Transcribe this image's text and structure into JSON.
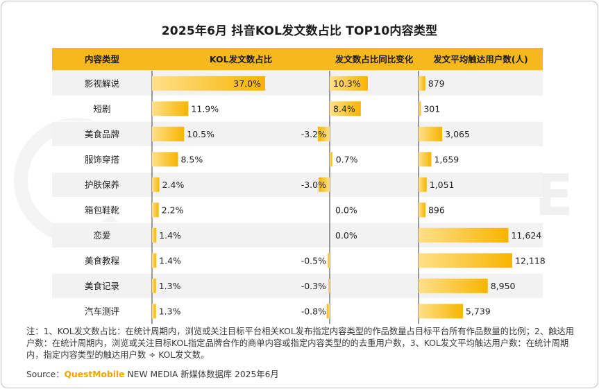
{
  "title": "2025年6月 抖音KOL发文数占比 TOP10内容类型",
  "colors": {
    "header_bg": "#f6b81a",
    "bar_gradient_start": "#ffe08a",
    "bar_gradient_end": "#f7b500",
    "row_alt_bg": "#f2f2f2",
    "brand": "#f3a300"
  },
  "chart_data": {
    "type": "table",
    "columns": [
      "内容类型",
      "KOL发文数占比",
      "发文数占比同比变化",
      "发文平均触达用户数(人)"
    ],
    "rows": [
      {
        "category": "影视解说",
        "share": 37.0,
        "share_label": "37.0%",
        "change": 10.3,
        "change_label": "10.3%",
        "reach": 879,
        "reach_label": "879"
      },
      {
        "category": "短剧",
        "share": 11.9,
        "share_label": "11.9%",
        "change": 8.4,
        "change_label": "8.4%",
        "reach": 301,
        "reach_label": "301"
      },
      {
        "category": "美食品牌",
        "share": 10.5,
        "share_label": "10.5%",
        "change": -3.2,
        "change_label": "-3.2%",
        "reach": 3065,
        "reach_label": "3,065"
      },
      {
        "category": "服饰穿搭",
        "share": 8.5,
        "share_label": "8.5%",
        "change": 0.7,
        "change_label": "0.7%",
        "reach": 1659,
        "reach_label": "1,659"
      },
      {
        "category": "护肤保养",
        "share": 2.4,
        "share_label": "2.4%",
        "change": -3.0,
        "change_label": "-3.0%",
        "reach": 1051,
        "reach_label": "1,051"
      },
      {
        "category": "箱包鞋靴",
        "share": 2.2,
        "share_label": "2.2%",
        "change": 0.0,
        "change_label": "0.0%",
        "reach": 896,
        "reach_label": "896"
      },
      {
        "category": "恋爱",
        "share": 1.4,
        "share_label": "1.4%",
        "change": 0.0,
        "change_label": "0.0%",
        "reach": 11624,
        "reach_label": "11,624"
      },
      {
        "category": "美食教程",
        "share": 1.4,
        "share_label": "1.4%",
        "change": -0.5,
        "change_label": "-0.5%",
        "reach": 12118,
        "reach_label": "12,118"
      },
      {
        "category": "美食记录",
        "share": 1.3,
        "share_label": "1.3%",
        "change": -0.3,
        "change_label": "-0.3%",
        "reach": 8950,
        "reach_label": "8,950"
      },
      {
        "category": "汽车测评",
        "share": 1.3,
        "share_label": "1.3%",
        "change": -0.8,
        "change_label": "-0.8%",
        "reach": 5739,
        "reach_label": "5,739"
      }
    ]
  },
  "note": "注：1、KOL发文数占比：在统计周期内，浏览或关注目标平台相关KOL发布指定内容类型的作品数量占目标平台所有作品数量的比例；2、触达用户数：在统计周期内，浏览或关注目标KOL指定品牌合作的商单内容或指定内容类型的的去重用户数，3、KOL发文平均触达用户数：在统计周期内，指定内容类型的触达用户数 ÷ KOL发文数。",
  "source": {
    "label": "Source：",
    "brand": "QuestMobile",
    "rest": " NEW MEDIA 新媒体数据库 2025年6月"
  }
}
